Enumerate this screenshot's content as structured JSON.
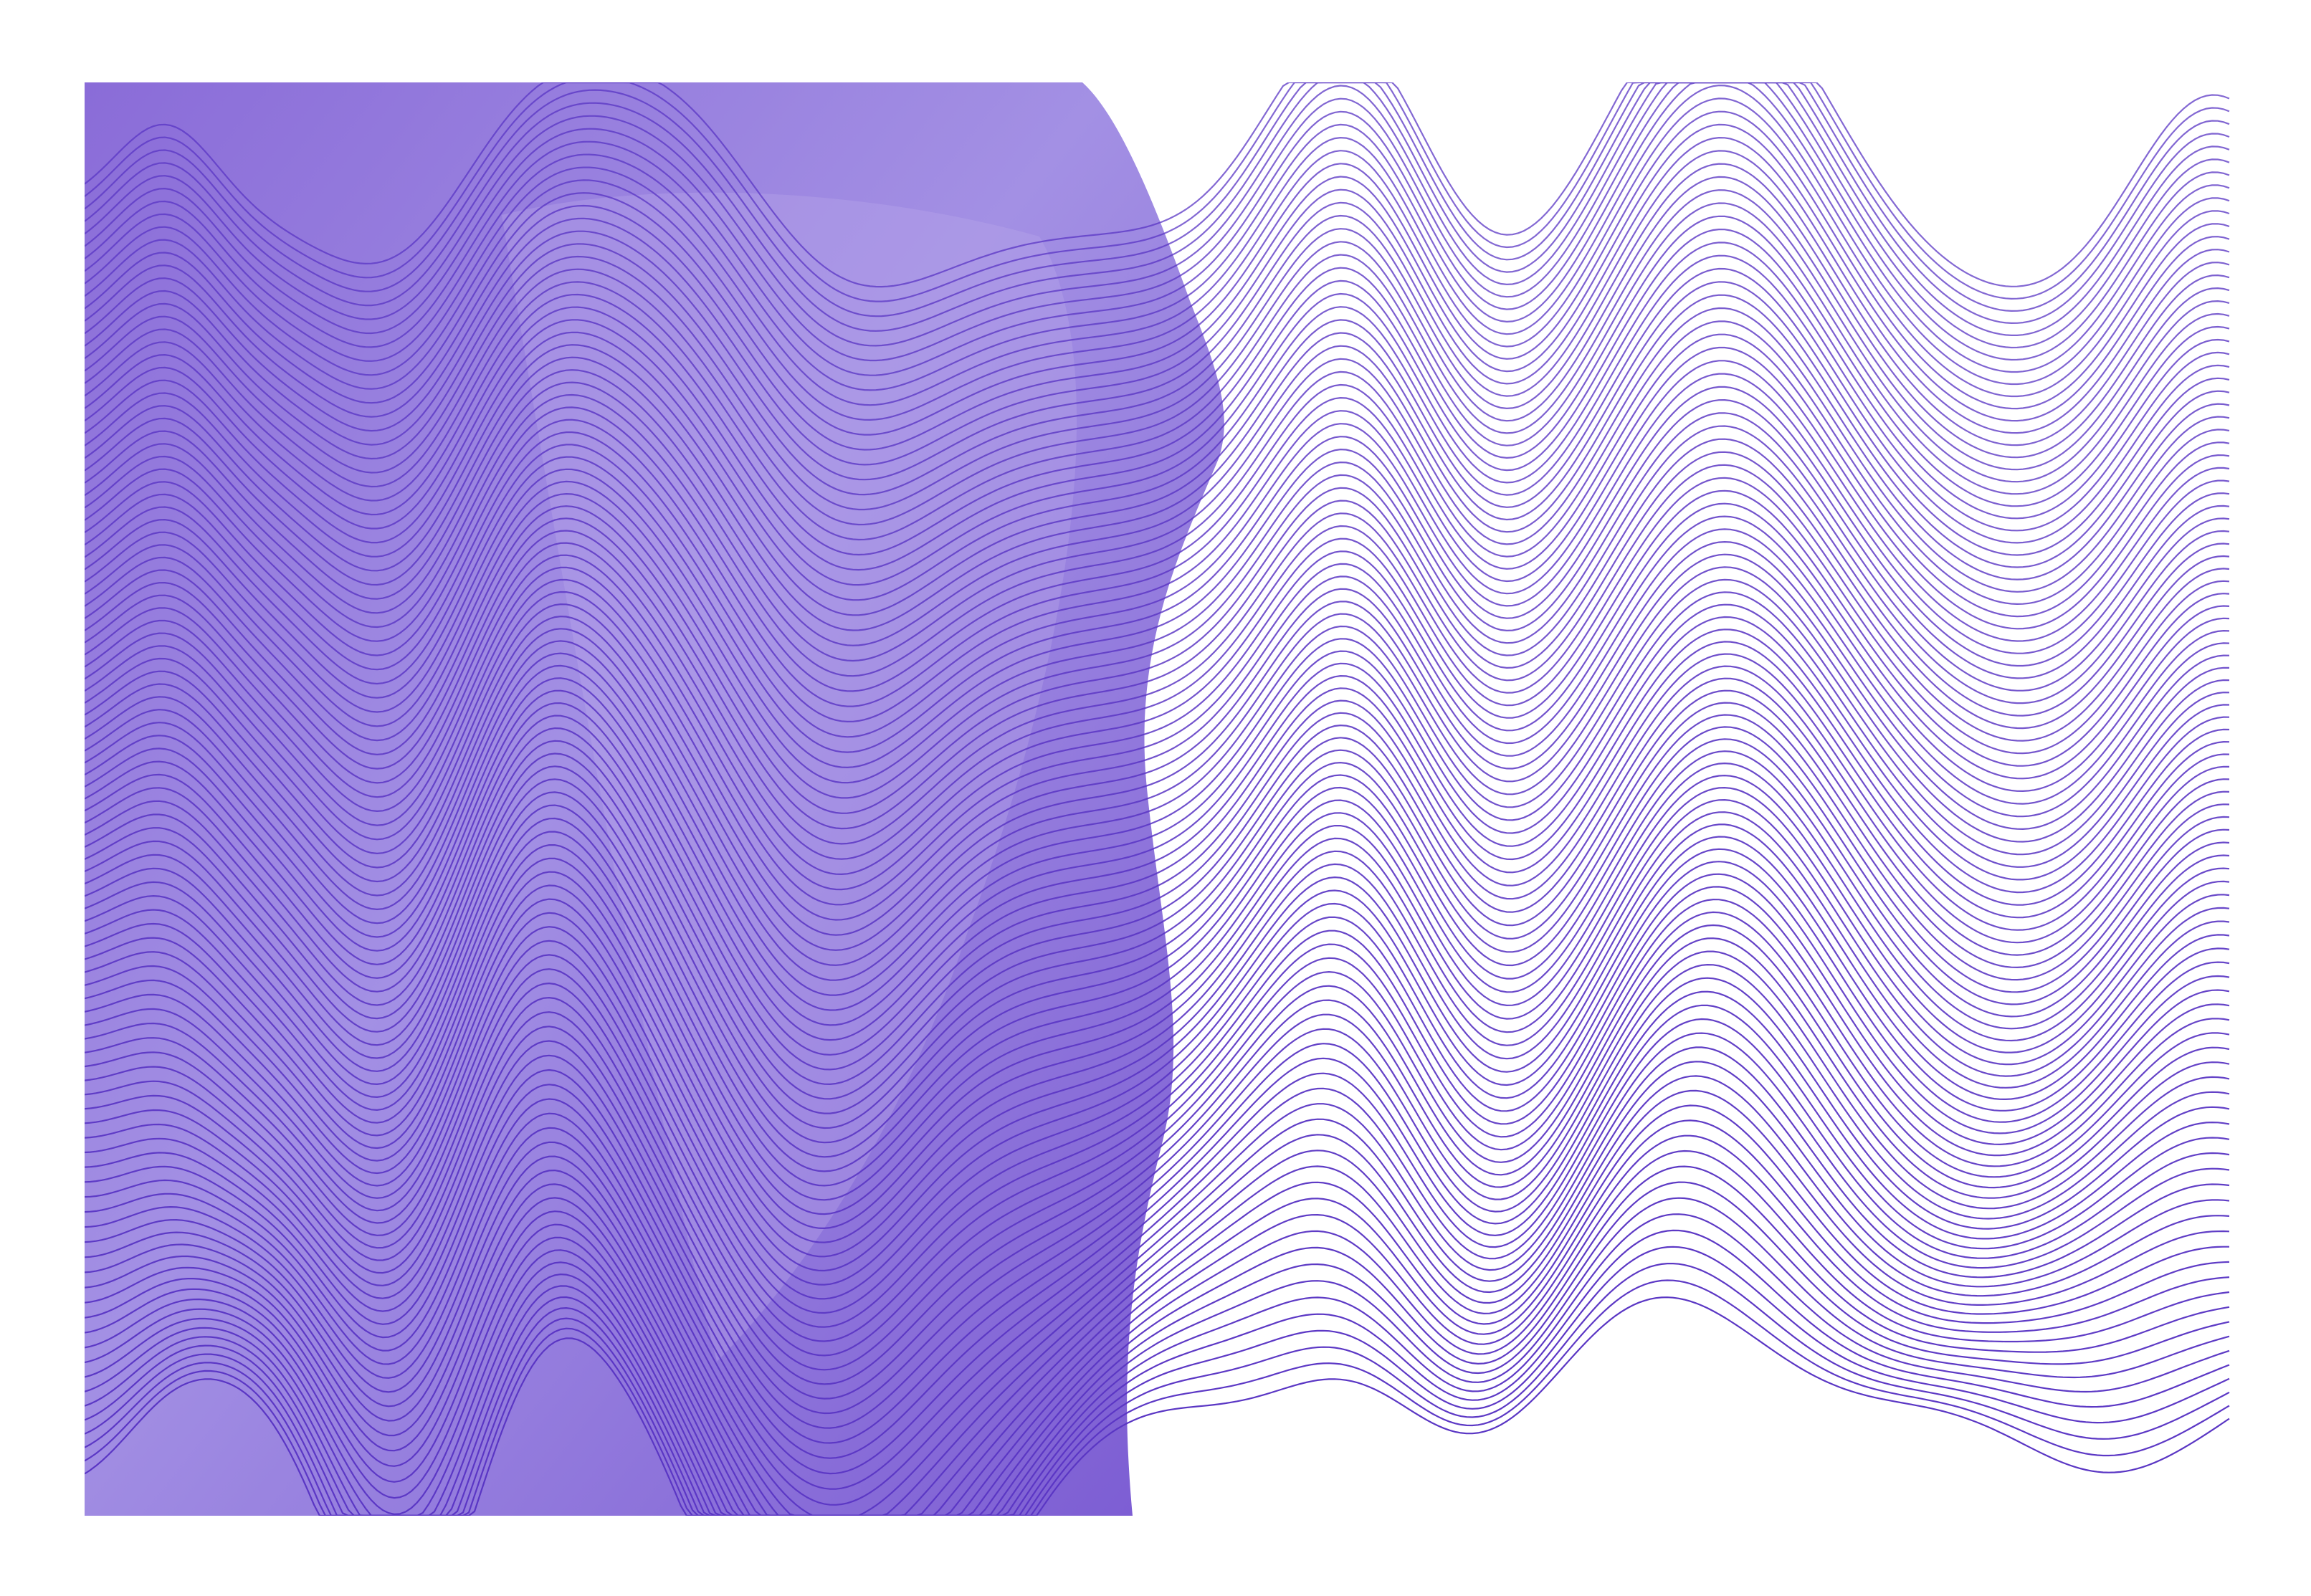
{
  "artwork": {
    "kind": "abstract wave line art",
    "colors": {
      "background": "#ffffff",
      "fill_light": "#a896e6",
      "fill_mid": "#8466d6",
      "fill_dark": "#7455cf",
      "line": "#5a36c4"
    },
    "line_count": 100
  }
}
